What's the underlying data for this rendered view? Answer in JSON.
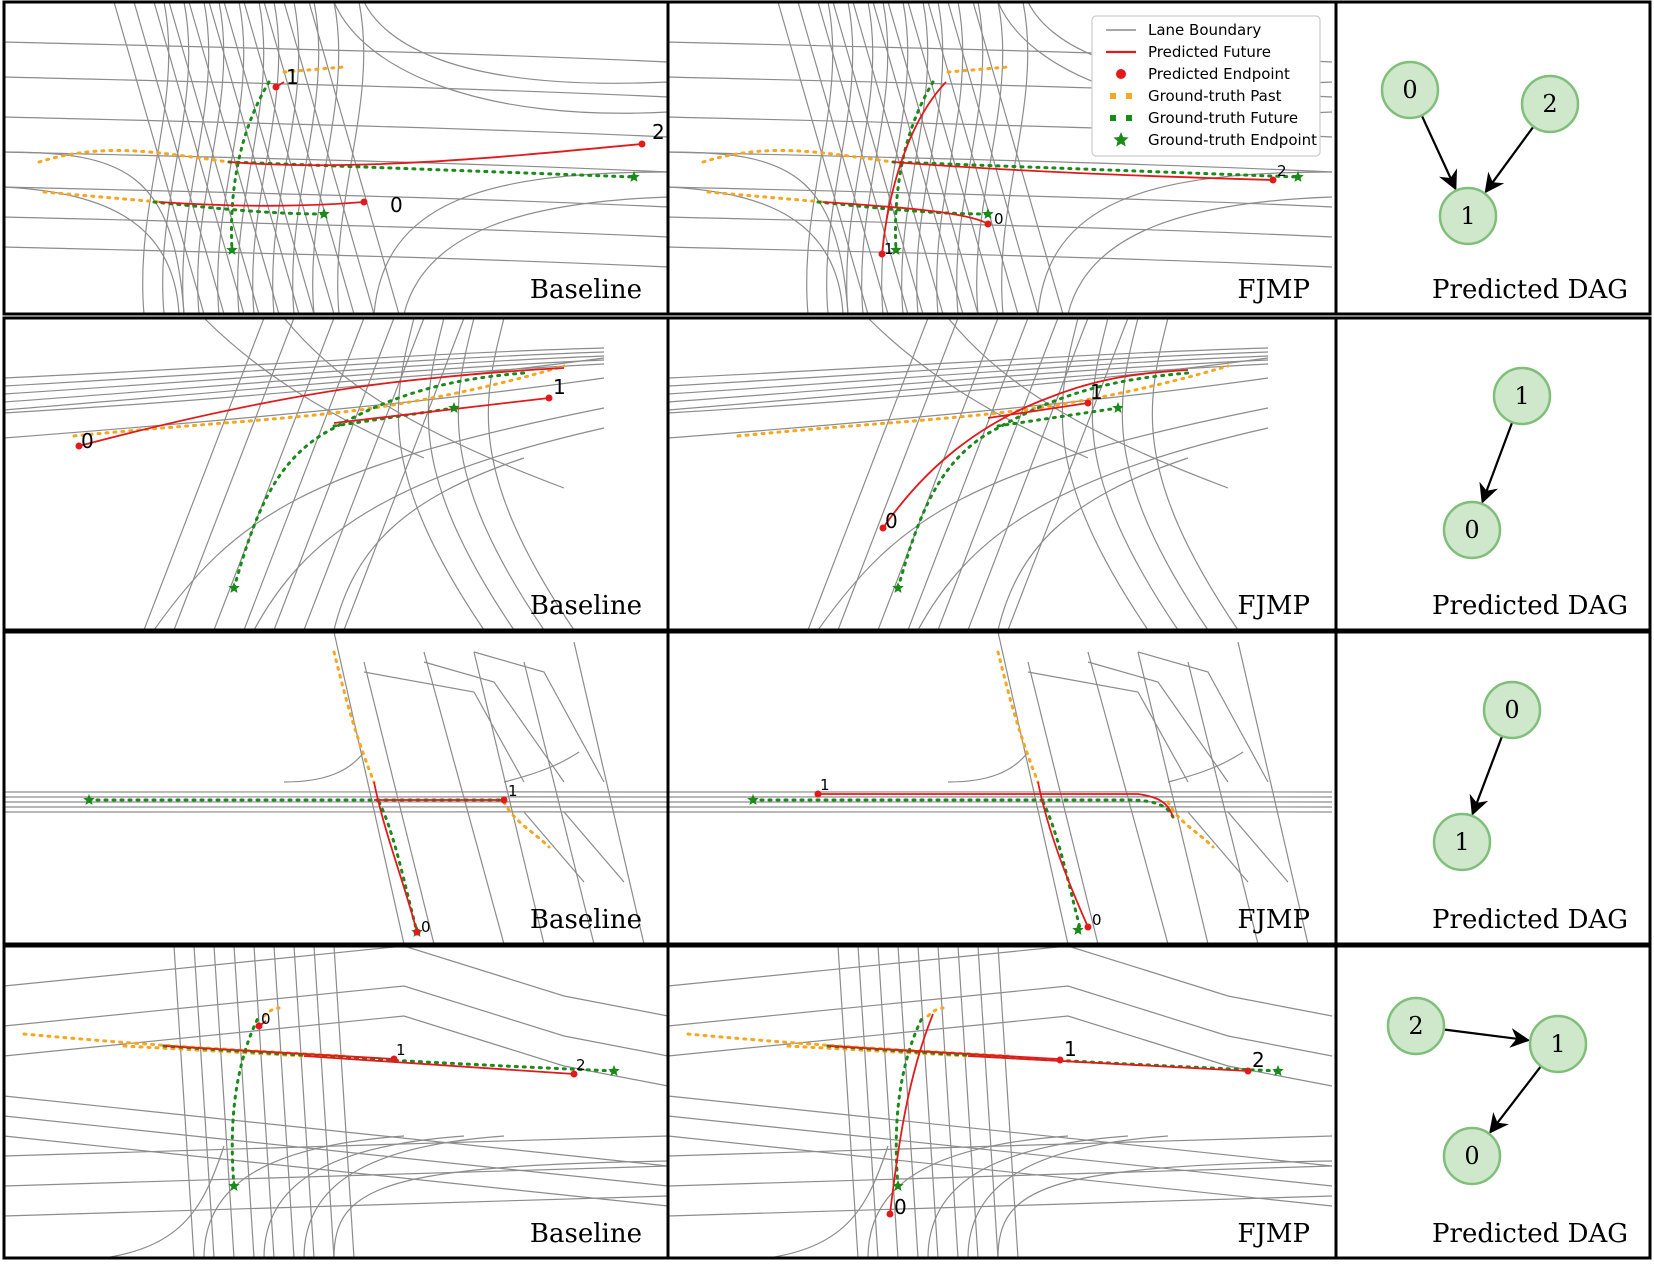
{
  "rows": [
    {
      "baseline": {
        "label": "Baseline",
        "agents": [
          {
            "id": "0",
            "label_size": 20
          },
          {
            "id": "1",
            "label_size": 20
          },
          {
            "id": "2",
            "label_size": 20
          }
        ]
      },
      "fjmp": {
        "label": "FJMP",
        "agents": [
          {
            "id": "0",
            "label_size": 15
          },
          {
            "id": "1",
            "label_size": 15
          },
          {
            "id": "2",
            "label_size": 15
          }
        ]
      },
      "dag": {
        "label": "Predicted DAG",
        "nodes": [
          {
            "id": "0",
            "label": "0"
          },
          {
            "id": "2",
            "label": "2"
          },
          {
            "id": "1",
            "label": "1"
          }
        ],
        "edges": [
          {
            "from": "0",
            "to": "1"
          },
          {
            "from": "2",
            "to": "1"
          }
        ]
      }
    },
    {
      "baseline": {
        "label": "Baseline",
        "agents": [
          {
            "id": "0",
            "label_size": 20
          },
          {
            "id": "1",
            "label_size": 20
          }
        ]
      },
      "fjmp": {
        "label": "FJMP",
        "agents": [
          {
            "id": "0",
            "label_size": 20
          },
          {
            "id": "1",
            "label_size": 20
          }
        ]
      },
      "dag": {
        "label": "Predicted DAG",
        "nodes": [
          {
            "id": "1",
            "label": "1"
          },
          {
            "id": "0",
            "label": "0"
          }
        ],
        "edges": [
          {
            "from": "1",
            "to": "0"
          }
        ]
      }
    },
    {
      "baseline": {
        "label": "Baseline",
        "agents": [
          {
            "id": "0",
            "label_size": 15
          },
          {
            "id": "1",
            "label_size": 15
          }
        ]
      },
      "fjmp": {
        "label": "FJMP",
        "agents": [
          {
            "id": "0",
            "label_size": 15
          },
          {
            "id": "1",
            "label_size": 15
          }
        ]
      },
      "dag": {
        "label": "Predicted DAG",
        "nodes": [
          {
            "id": "0",
            "label": "0"
          },
          {
            "id": "1",
            "label": "1"
          }
        ],
        "edges": [
          {
            "from": "0",
            "to": "1"
          }
        ]
      }
    },
    {
      "baseline": {
        "label": "Baseline",
        "agents": [
          {
            "id": "0",
            "label_size": 15
          },
          {
            "id": "1",
            "label_size": 15
          },
          {
            "id": "2",
            "label_size": 15
          }
        ]
      },
      "fjmp": {
        "label": "FJMP",
        "agents": [
          {
            "id": "0",
            "label_size": 20
          },
          {
            "id": "1",
            "label_size": 20
          },
          {
            "id": "2",
            "label_size": 20
          }
        ]
      },
      "dag": {
        "label": "Predicted DAG",
        "nodes": [
          {
            "id": "2",
            "label": "2"
          },
          {
            "id": "1",
            "label": "1"
          },
          {
            "id": "0",
            "label": "0"
          }
        ],
        "edges": [
          {
            "from": "2",
            "to": "1"
          },
          {
            "from": "1",
            "to": "0"
          }
        ]
      }
    }
  ],
  "legend": {
    "items": [
      {
        "label": "Lane Boundary",
        "marker": "gray-line",
        "color": "#8c8c8c"
      },
      {
        "label": "Predicted Future",
        "marker": "red-line",
        "color": "#e31a1c"
      },
      {
        "label": "Predicted Endpoint",
        "marker": "red-dot",
        "color": "#e31a1c"
      },
      {
        "label": "Ground-truth Past",
        "marker": "orange-dots",
        "color": "#f5a623"
      },
      {
        "label": "Ground-truth Future",
        "marker": "green-dots",
        "color": "#1a8a1a"
      },
      {
        "label": "Ground-truth Endpoint",
        "marker": "green-star",
        "color": "#1a8a1a"
      }
    ]
  },
  "colors": {
    "lane": "#8c8c8c",
    "predicted": "#e31a1c",
    "past": "#f5a623",
    "gt_future": "#1a8a1a",
    "dag_node_fill": "#cfe8cc",
    "dag_node_stroke": "#7fbf7a"
  }
}
